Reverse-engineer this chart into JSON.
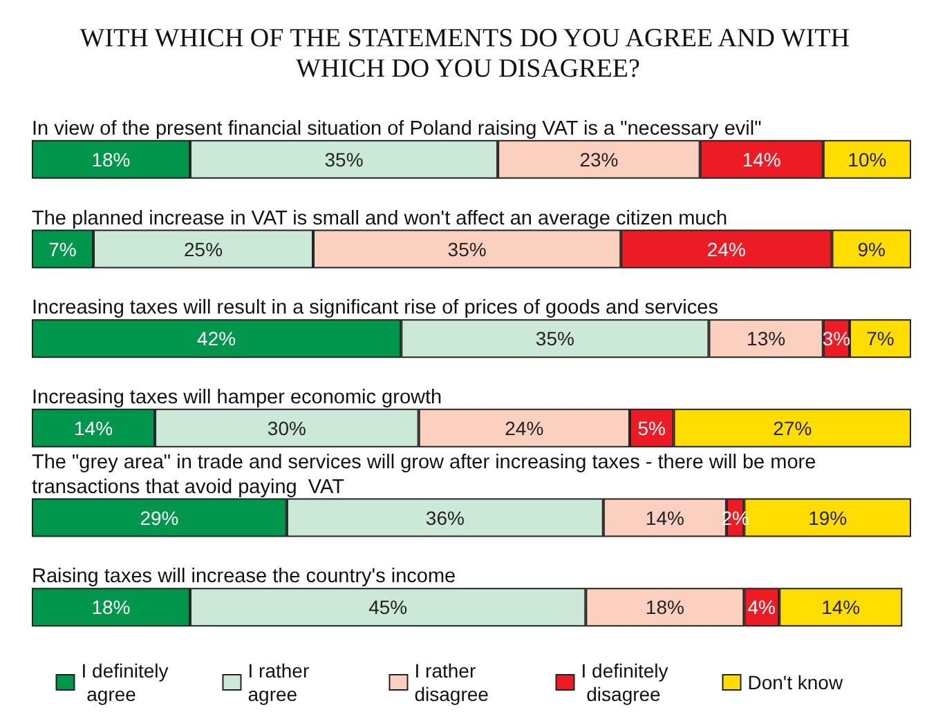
{
  "chart_data": {
    "type": "bar",
    "orientation": "horizontal",
    "stacked": true,
    "title": "WITH WHICH OF THE STATEMENTS DO YOU AGREE AND WITH WHICH DO YOU DISAGREE?",
    "categories": [
      "In view of the present financial situation of Poland raising VAT is a \"necessary evil\"",
      "The planned increase in VAT is small and won't affect an average citizen much",
      "Increasing taxes will result in a significant rise of prices of goods and services",
      "Increasing taxes will hamper economic growth",
      "The \"grey area\" in trade and services will grow after increasing taxes - there will be more transactions that avoid paying  VAT",
      "Raising taxes will increase the country's income"
    ],
    "series": [
      {
        "name": "I definitely agree",
        "color": "#00964b",
        "values": [
          18,
          7,
          42,
          14,
          29,
          18
        ],
        "value_labels": [
          "18%",
          "7%",
          "42%",
          "14%",
          "29%",
          "18%"
        ]
      },
      {
        "name": "I rather agree",
        "color": "#cce8d6",
        "values": [
          35,
          25,
          35,
          30,
          36,
          45
        ],
        "value_labels": [
          "35%",
          "25%",
          "35%",
          "30%",
          "36%",
          "45%"
        ]
      },
      {
        "name": "I rather disagree",
        "color": "#fbd0bf",
        "values": [
          23,
          35,
          13,
          24,
          14,
          18
        ],
        "value_labels": [
          "23%",
          "35%",
          "13%",
          "24%",
          "14%",
          "18%"
        ]
      },
      {
        "name": "I definitely disagree",
        "color": "#ed1c24",
        "values": [
          14,
          24,
          3,
          5,
          2,
          4
        ],
        "value_labels": [
          "14%",
          "24%",
          "3%",
          "5%",
          "2%",
          "4%"
        ]
      },
      {
        "name": "Don't know",
        "color": "#ffdd00",
        "values": [
          10,
          9,
          7,
          27,
          19,
          14
        ],
        "value_labels": [
          "10%",
          "9%",
          "7%",
          "27%",
          "19%",
          "14%"
        ]
      }
    ],
    "xlim": [
      0,
      100
    ],
    "tick_labels": "y",
    "legend": "bottom"
  }
}
